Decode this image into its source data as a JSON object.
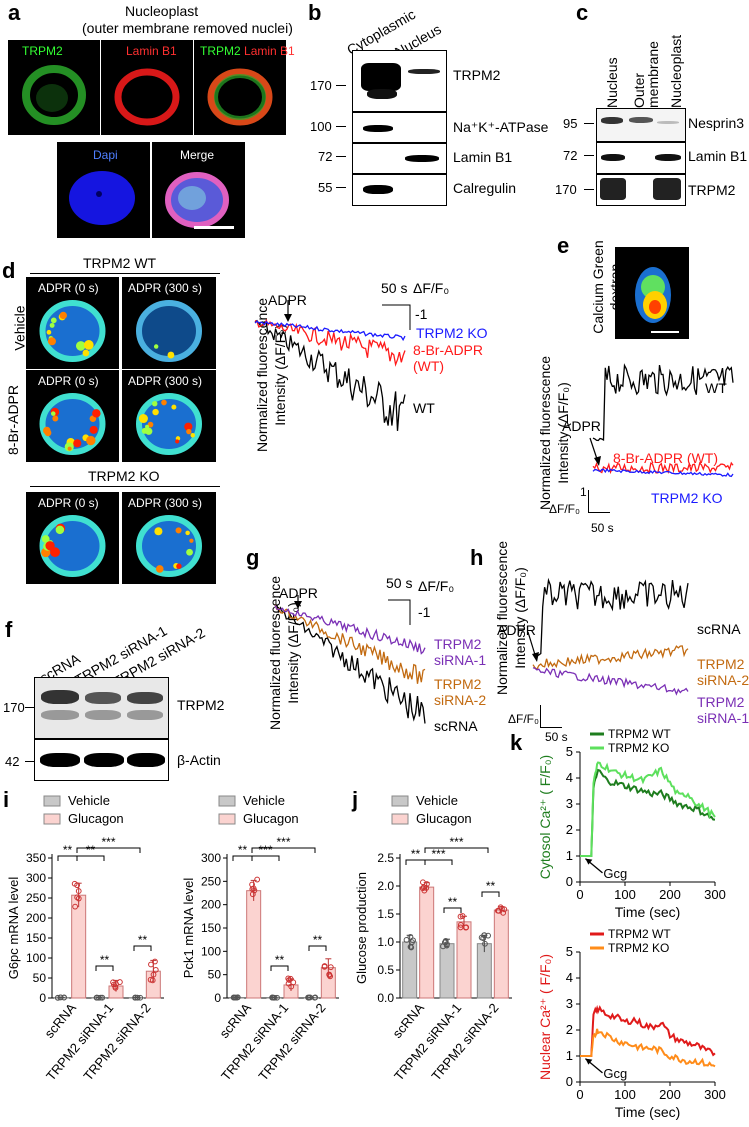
{
  "panels": {
    "a": {
      "letter": "a",
      "title": "Nucleoplast",
      "subtitle": "(outer membrane removed nuclei)",
      "top_labels": {
        "green": "TRPM2",
        "red": "Lamin B1",
        "merge_green": "TRPM2",
        "merge_red": "Lamin B1"
      },
      "bottom_labels": {
        "dapi": "Dapi",
        "merge": "Merge"
      }
    },
    "b": {
      "letter": "b",
      "columns": [
        "Cytoplasmic",
        "Nucleus"
      ],
      "rows": [
        {
          "mw": "170",
          "label": "TRPM2"
        },
        {
          "mw": "100",
          "label": "Na⁺K⁺-ATPase"
        },
        {
          "mw": "72",
          "label": "Lamin B1"
        },
        {
          "mw": "55",
          "label": "Calregulin"
        }
      ]
    },
    "c": {
      "letter": "c",
      "columns": [
        "Nucleus",
        "Outer membrane",
        "Nucleoplast"
      ],
      "rows": [
        {
          "mw": "95",
          "label": "Nesprin3"
        },
        {
          "mw": "72",
          "label": "Lamin B1"
        },
        {
          "mw": "170",
          "label": "TRPM2"
        }
      ]
    },
    "d": {
      "letter": "d",
      "wt_title": "TRPM2 WT",
      "ko_title": "TRPM2 KO",
      "row_labels": [
        "Vehicle",
        "8-Br-ADPR"
      ],
      "image_labels": [
        "ADPR (0 s)",
        "ADPR (300 s)"
      ],
      "trace": {
        "ylabel_1": "Normalized fluorescence",
        "ylabel_2": "Intensity (ΔF/F₀)",
        "arrow_label": "ADPR",
        "scale_time": "50 s",
        "scale_y_label": "ΔF/F₀",
        "scale_y_value": "-1",
        "series": [
          {
            "name": "TRPM2 KO",
            "color": "#1a1aff"
          },
          {
            "name": "8-Br-ADPR",
            "name2": "(WT)",
            "color": "#ff1a1a"
          },
          {
            "name": "WT",
            "color": "#000000"
          }
        ]
      }
    },
    "e": {
      "letter": "e",
      "image_label_1": "Calcium Green",
      "image_label_2": "dextran",
      "trace": {
        "ylabel_1": "Normalized fluorescence",
        "ylabel_2": "Intensity (ΔF/F₀)",
        "arrow_label": "ADPR",
        "scale_y_value": "1",
        "scale_y_label": "ΔF/F₀",
        "scale_time": "50 s",
        "series": [
          {
            "name": "WT",
            "color": "#000000"
          },
          {
            "name": "8-Br-ADPR (WT)",
            "color": "#ff1a1a"
          },
          {
            "name": "TRPM2 KO",
            "color": "#1a1aff"
          }
        ]
      }
    },
    "f": {
      "letter": "f",
      "columns": [
        "scRNA",
        "TRPM2 siRNA-1",
        "TRPM2 siRNA-2"
      ],
      "rows": [
        {
          "mw": "170",
          "label": "TRPM2"
        },
        {
          "mw": "42",
          "label": "β-Actin"
        }
      ]
    },
    "g": {
      "letter": "g",
      "trace": {
        "ylabel_1": "Normalized fluorescence",
        "ylabel_2": "Intensity (ΔF/F₀)",
        "arrow_label": "ADPR",
        "scale_time": "50 s",
        "scale_y_label": "ΔF/F₀",
        "scale_y_value": "-1",
        "series": [
          {
            "name": "TRPM2",
            "name2": "siRNA-1",
            "color": "#7a2fb5"
          },
          {
            "name": "TRPM2",
            "name2": "siRNA-2",
            "color": "#c26a10"
          },
          {
            "name": "scRNA",
            "color": "#000000"
          }
        ]
      }
    },
    "h": {
      "letter": "h",
      "trace": {
        "ylabel_1": "Normalized fluorescence",
        "ylabel_2": "Intensity (ΔF/F₀)",
        "arrow_label": "ADPR",
        "scale_y_label": "ΔF/F₀",
        "scale_time": "50 s",
        "series": [
          {
            "name": "scRNA",
            "color": "#000000"
          },
          {
            "name": "TRPM2",
            "name2": "siRNA-2",
            "color": "#c26a10"
          },
          {
            "name": "TRPM2",
            "name2": "siRNA-1",
            "color": "#7a2fb5"
          }
        ]
      }
    },
    "i": {
      "letter": "i"
    },
    "j": {
      "letter": "j"
    },
    "k": {
      "letter": "k",
      "gcg_label": "Gcg"
    }
  },
  "chart_data": [
    {
      "id": "i_left",
      "type": "bar",
      "ylabel": "G6pc mRNA level",
      "ylim": [
        0,
        350
      ],
      "yticks": [
        0,
        50,
        100,
        150,
        200,
        250,
        300,
        350
      ],
      "categories": [
        "scRNA",
        "TRPM2 siRNA-1",
        "TRPM2 siRNA-2"
      ],
      "legend": [
        "Vehicle",
        "Glucagon"
      ],
      "series": [
        {
          "name": "Vehicle",
          "color": "#c8c8c8",
          "values": [
            1,
            1,
            1
          ],
          "errors": [
            0.5,
            0.5,
            0.5
          ]
        },
        {
          "name": "Glucagon",
          "color": "#fbd3d0",
          "values": [
            257,
            30,
            67
          ],
          "errors": [
            30,
            14,
            27
          ]
        }
      ],
      "significance": [
        "**",
        "**",
        "***",
        "**",
        "**"
      ]
    },
    {
      "id": "i_right",
      "type": "bar",
      "ylabel": "Pck1 mRNA level",
      "ylim": [
        0,
        300
      ],
      "yticks": [
        0,
        50,
        100,
        150,
        200,
        250,
        300
      ],
      "categories": [
        "scRNA",
        "TRPM2 siRNA-1",
        "TRPM2 siRNA-2"
      ],
      "legend": [
        "Vehicle",
        "Glucagon"
      ],
      "series": [
        {
          "name": "Vehicle",
          "color": "#c8c8c8",
          "values": [
            1,
            1,
            1
          ],
          "errors": [
            0.5,
            0.5,
            0.5
          ]
        },
        {
          "name": "Glucagon",
          "color": "#fbd3d0",
          "values": [
            230,
            28,
            65
          ],
          "errors": [
            22,
            13,
            19
          ]
        }
      ],
      "significance": [
        "**",
        "***",
        "***",
        "**",
        "**"
      ]
    },
    {
      "id": "j",
      "type": "bar",
      "ylabel": "Glucose production",
      "ylim": [
        0,
        2.5
      ],
      "yticks": [
        0.0,
        0.5,
        1.0,
        1.5,
        2.0,
        2.5
      ],
      "categories": [
        "scRNA",
        "TRPM2 siRNA-1",
        "TRPM2 siRNA-2"
      ],
      "legend": [
        "Vehicle",
        "Glucagon"
      ],
      "series": [
        {
          "name": "Vehicle",
          "color": "#c8c8c8",
          "values": [
            1.0,
            0.97,
            0.97
          ],
          "errors": [
            0.12,
            0.08,
            0.15
          ]
        },
        {
          "name": "Glucagon",
          "color": "#fbd3d0",
          "values": [
            1.98,
            1.36,
            1.57
          ],
          "errors": [
            0.08,
            0.1,
            0.06
          ]
        }
      ],
      "significance": [
        "**",
        "***",
        "***",
        "**",
        "**"
      ]
    },
    {
      "id": "k_top",
      "type": "line",
      "ylabel": "Cytosol Ca²⁺ ( F/F₀)",
      "xlabel": "Time (sec)",
      "xlim": [
        0,
        300
      ],
      "ylim": [
        0,
        5
      ],
      "xticks": [
        0,
        100,
        200,
        300
      ],
      "yticks": [
        0,
        1,
        2,
        3,
        4,
        5
      ],
      "series": [
        {
          "name": "TRPM2 WT",
          "color": "#1e7d1e",
          "x": [
            0,
            25,
            30,
            40,
            60,
            80,
            100,
            120,
            140,
            160,
            180,
            200,
            220,
            240,
            260,
            280,
            300
          ],
          "y": [
            1,
            1,
            3.6,
            4.3,
            3.9,
            3.8,
            3.7,
            3.6,
            3.5,
            3.4,
            3.4,
            3.2,
            3.0,
            2.9,
            2.8,
            2.6,
            2.4
          ]
        },
        {
          "name": "TRPM2 KO",
          "color": "#5de05d",
          "x": [
            0,
            25,
            30,
            40,
            60,
            80,
            100,
            120,
            140,
            160,
            180,
            200,
            220,
            240,
            260,
            280,
            300
          ],
          "y": [
            1,
            1,
            3.8,
            4.6,
            4.4,
            4.2,
            4.1,
            4.0,
            3.9,
            4.1,
            4.3,
            3.8,
            3.3,
            3.4,
            3.0,
            2.8,
            2.5
          ]
        }
      ]
    },
    {
      "id": "k_bottom",
      "type": "line",
      "ylabel": "Nuclear Ca²⁺ ( F/F₀)",
      "xlabel": "Time (sec)",
      "xlim": [
        0,
        300
      ],
      "ylim": [
        0,
        5
      ],
      "xticks": [
        0,
        100,
        200,
        300
      ],
      "yticks": [
        0,
        1,
        2,
        3,
        4,
        5
      ],
      "series": [
        {
          "name": "TRPM2 WT",
          "color": "#e01a1a",
          "x": [
            0,
            25,
            30,
            40,
            60,
            80,
            100,
            120,
            140,
            160,
            180,
            200,
            220,
            240,
            260,
            280,
            300
          ],
          "y": [
            1,
            1,
            2.6,
            2.8,
            2.6,
            2.5,
            2.3,
            2.4,
            2.2,
            2.1,
            2.3,
            1.8,
            1.6,
            1.5,
            1.4,
            1.2,
            1.1
          ]
        },
        {
          "name": "TRPM2 KO",
          "color": "#ff8c1a",
          "x": [
            0,
            25,
            30,
            40,
            60,
            80,
            100,
            120,
            140,
            160,
            180,
            200,
            220,
            240,
            260,
            280,
            300
          ],
          "y": [
            1,
            1,
            1.8,
            2.0,
            1.8,
            1.6,
            1.5,
            1.4,
            1.3,
            1.3,
            1.2,
            1.0,
            0.9,
            0.8,
            0.8,
            0.7,
            0.6
          ]
        }
      ]
    }
  ]
}
